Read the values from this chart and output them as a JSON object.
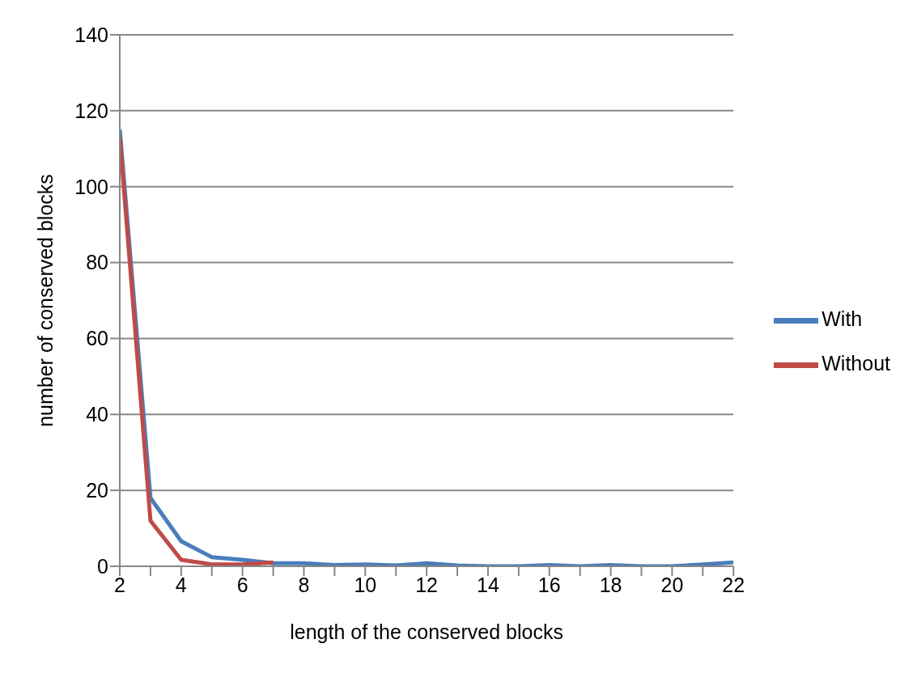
{
  "chart_data": {
    "type": "line",
    "xlabel": "length of the conserved blocks",
    "ylabel": "number of conserved blocks",
    "xlim": [
      2,
      22
    ],
    "xticks": [
      2,
      {
        "value": 3,
        "label": null
      },
      4,
      {
        "value": 5,
        "label": null
      },
      6,
      {
        "value": 7,
        "label": null
      },
      8,
      {
        "value": 9,
        "label": null
      },
      10,
      {
        "value": 11,
        "label": null
      },
      12,
      {
        "value": 13,
        "label": null
      },
      14,
      {
        "value": 15,
        "label": null
      },
      16,
      {
        "value": 17,
        "label": null
      },
      18,
      {
        "value": 19,
        "label": null
      },
      20,
      {
        "value": 21,
        "label": null
      },
      22
    ],
    "ylim": [
      0,
      140
    ],
    "yticks": [
      0,
      20,
      40,
      60,
      80,
      100,
      120,
      140
    ],
    "grid": "y",
    "legend": "right",
    "marker": "none",
    "line_style": "solid",
    "series": [
      {
        "name": "With",
        "color": "#4a7ebb",
        "x": [
          2,
          3,
          4,
          5,
          6,
          7,
          8,
          9,
          10,
          11,
          12,
          13,
          14,
          15,
          16,
          17,
          18,
          19,
          20,
          21,
          22
        ],
        "values": [
          115,
          18,
          6.6,
          2.4,
          1.7,
          0.8,
          0.8,
          0.3,
          0.5,
          0.2,
          0.8,
          0.2,
          0,
          0,
          0.3,
          0,
          0.3,
          0,
          0,
          0.5,
          1
        ]
      },
      {
        "name": "Without",
        "color": "#be4b48",
        "x": [
          2,
          3,
          4,
          5,
          6,
          7
        ],
        "values": [
          113,
          12,
          1.7,
          0.5,
          0.5,
          1
        ]
      }
    ]
  }
}
